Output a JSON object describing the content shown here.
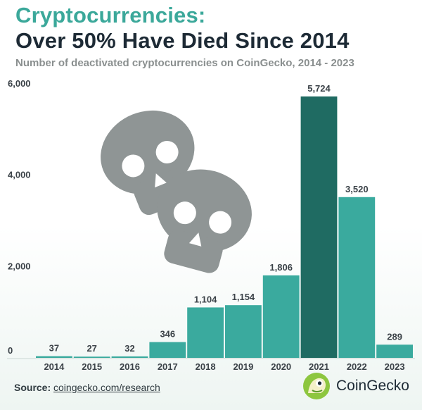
{
  "header": {
    "title_line1": "Cryptocurrencies:",
    "title_line2": "Over 50% Have Died Since 2014",
    "subtitle": "Number of deactivated cryptocurrencies on CoinGecko, 2014 - 2023"
  },
  "chart_data": {
    "type": "bar",
    "title": "Cryptocurrencies: Over 50% Have Died Since 2014",
    "subtitle": "Number of deactivated cryptocurrencies on CoinGecko, 2014 - 2023",
    "categories": [
      "2014",
      "2015",
      "2016",
      "2017",
      "2018",
      "2019",
      "2020",
      "2021",
      "2022",
      "2023"
    ],
    "values": [
      37,
      27,
      32,
      346,
      1104,
      1154,
      1806,
      5724,
      3520,
      289
    ],
    "value_labels": [
      "37",
      "27",
      "32",
      "346",
      "1,104",
      "1,154",
      "1,806",
      "5,724",
      "3,520",
      "289"
    ],
    "y_ticks": [
      0,
      2000,
      4000,
      6000
    ],
    "y_tick_labels": [
      "0",
      "2,000",
      "4,000",
      "6,000"
    ],
    "ylim": [
      0,
      6000
    ],
    "highlight_category": "2021",
    "xlabel": "",
    "ylabel": "",
    "grid": false,
    "colors": {
      "bar": "#3aaa9e",
      "highlight": "#1f6b62",
      "skull": "#8f9595",
      "baseline": "#c9d6d3"
    }
  },
  "footer": {
    "source_label": "Source:",
    "source_link": "coingecko.com/research",
    "brand_name": "CoinGecko",
    "brand_logo": "coingecko-logo-icon"
  }
}
